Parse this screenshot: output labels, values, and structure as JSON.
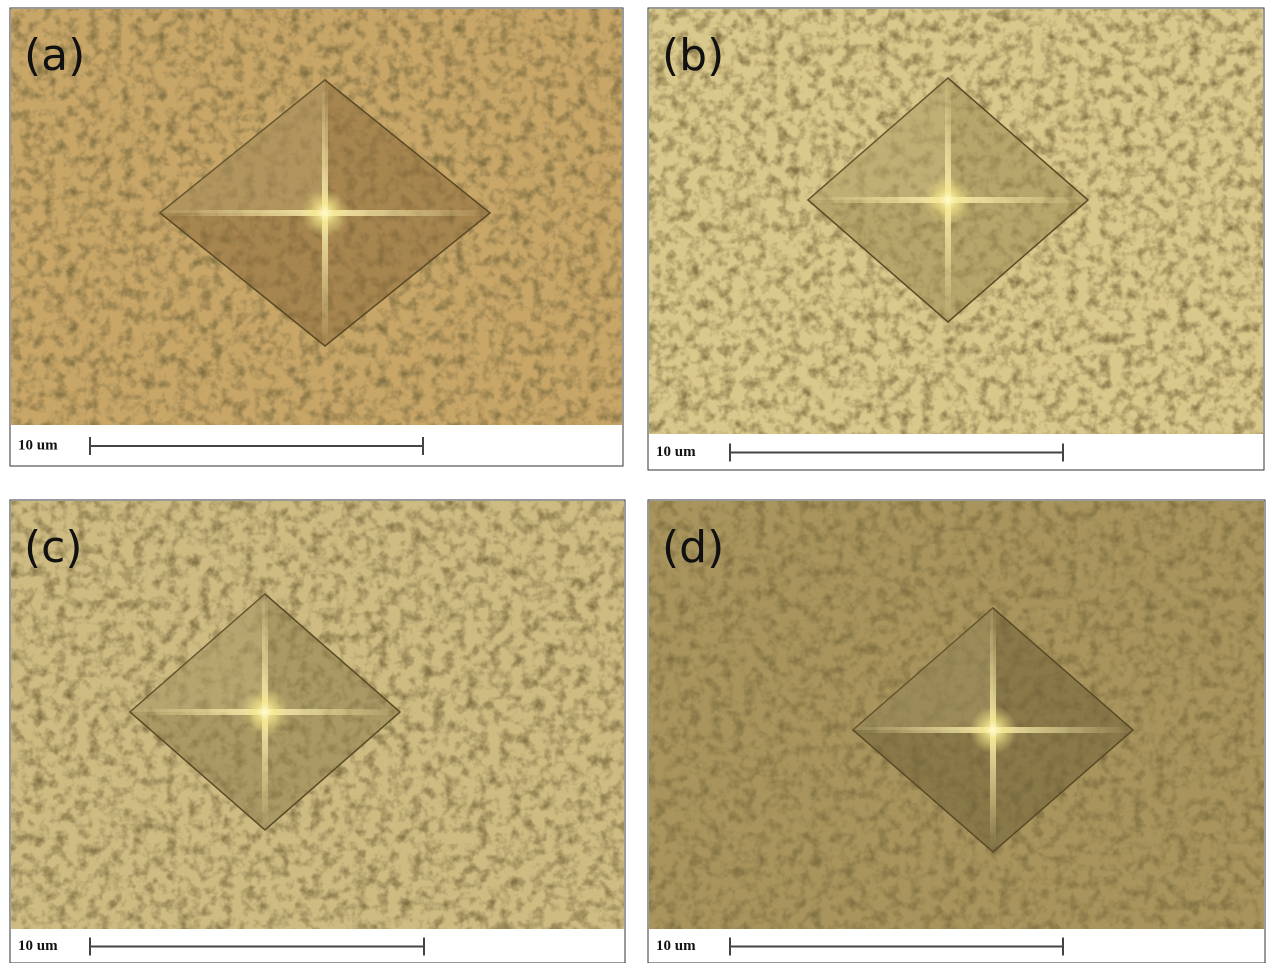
{
  "panels": [
    {
      "label": "(a)",
      "scale_label": "10 um"
    },
    {
      "label": "(b)",
      "scale_label": "10 um"
    },
    {
      "label": "(c)",
      "scale_label": "10 um"
    },
    {
      "label": "(d)",
      "scale_label": "10 um"
    }
  ]
}
